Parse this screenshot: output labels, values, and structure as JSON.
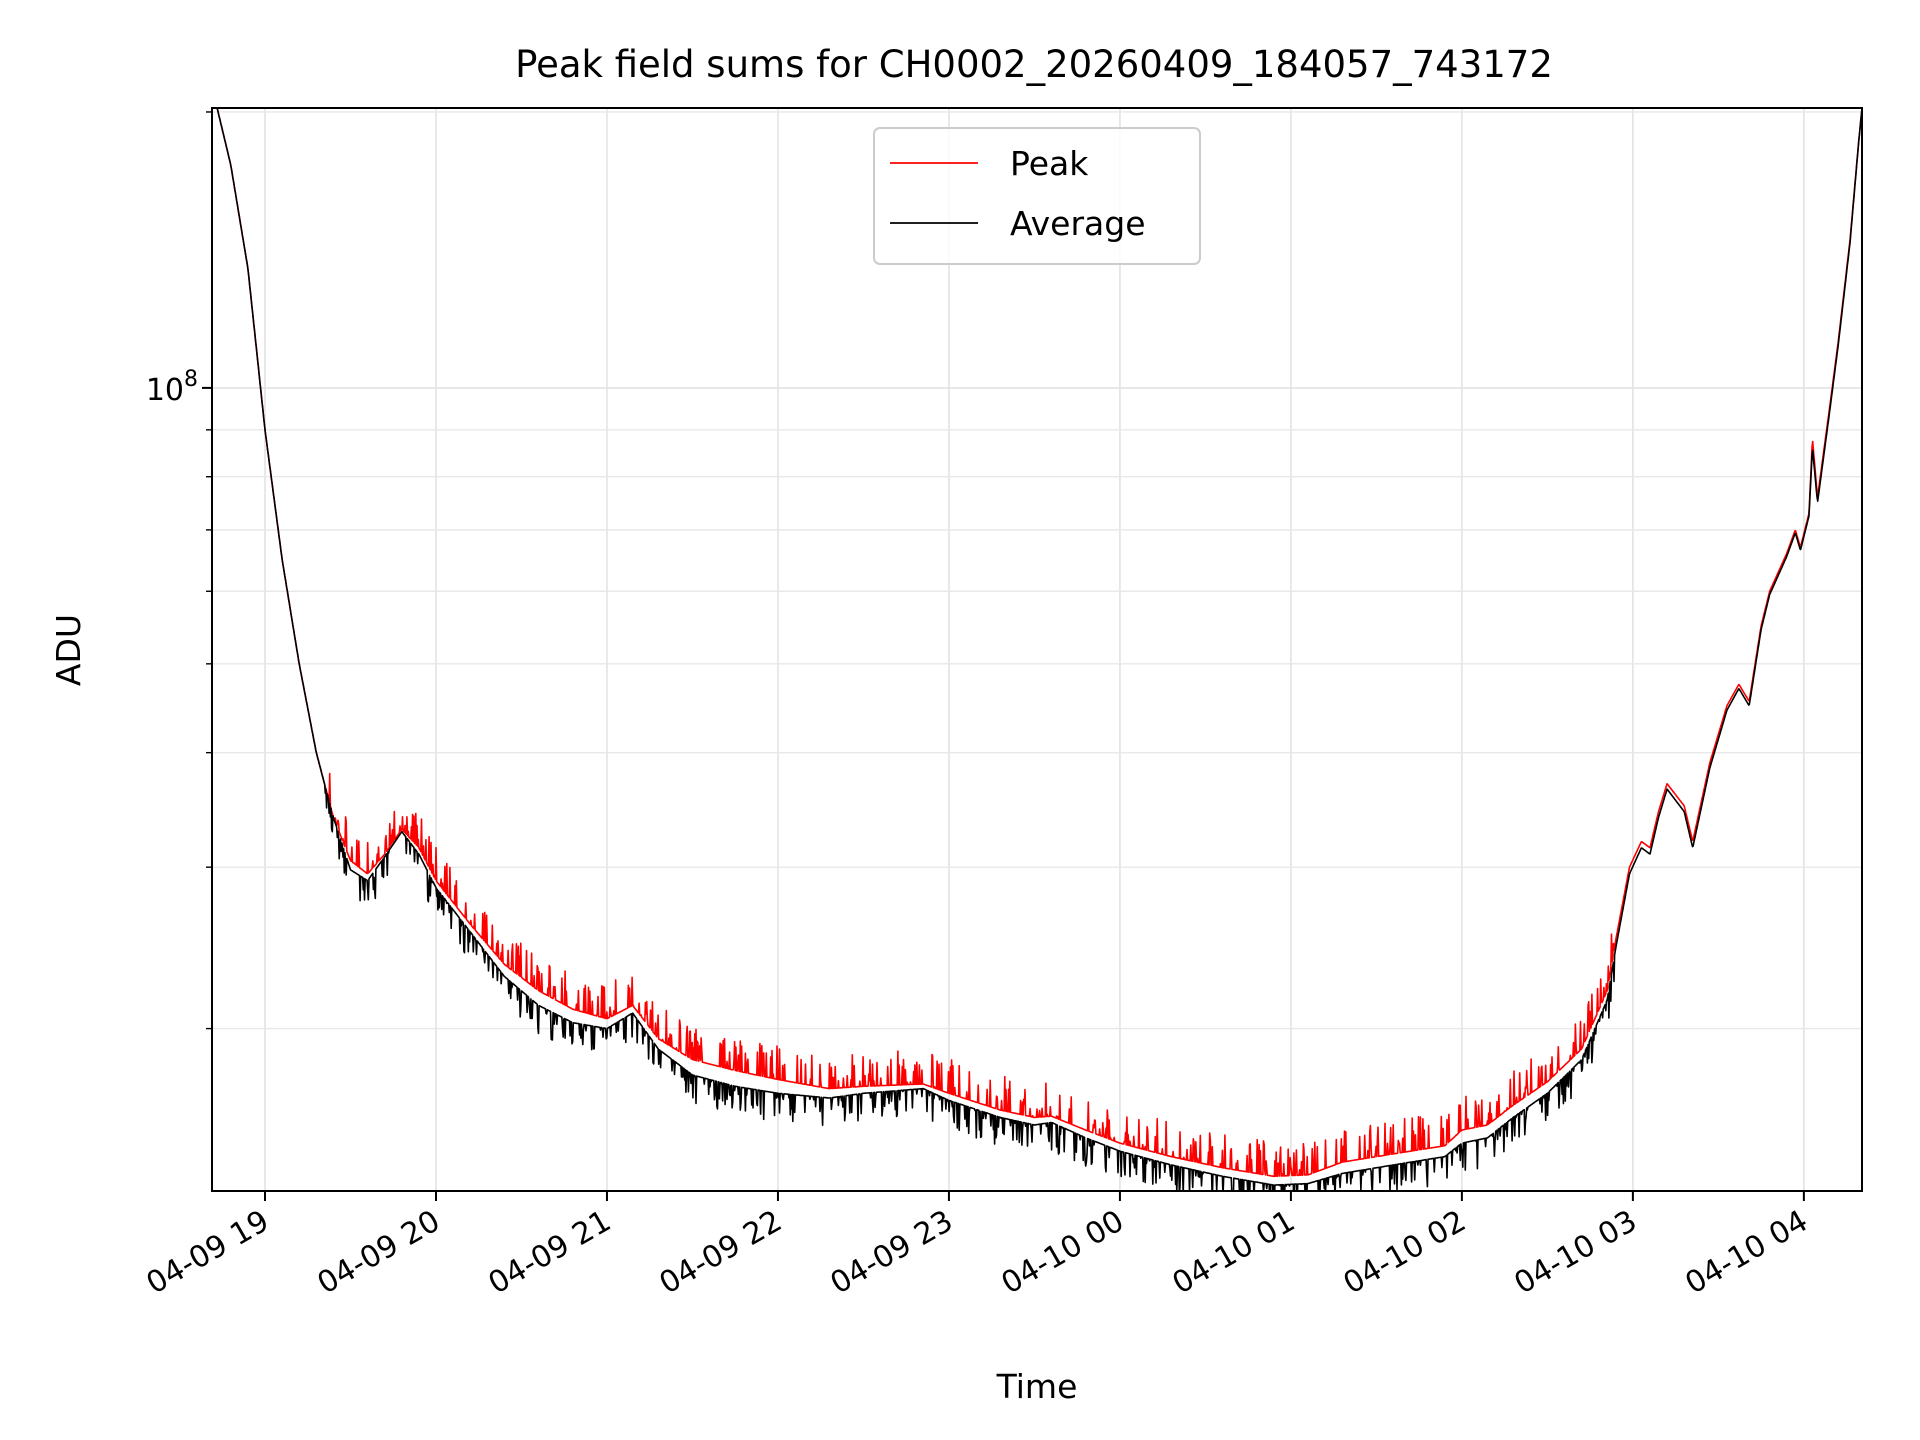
{
  "chart_data": {
    "type": "line",
    "title": "Peak field sums for CH0002_20260409_184057_743172",
    "xlabel": "Time",
    "ylabel": "ADU",
    "y_scale": "log",
    "grid": true,
    "legend_position": "upper-center",
    "x_unit": "hours since 2026-04-09 19:00",
    "xlim": [
      -0.31,
      9.34
    ],
    "ylim": [
      13300000.0,
      202000000.0
    ],
    "x_ticks": [
      0,
      1,
      2,
      3,
      4,
      5,
      6,
      7,
      8,
      9
    ],
    "x_tick_labels": [
      "04-09 19",
      "04-09 20",
      "04-09 21",
      "04-09 22",
      "04-09 23",
      "04-10 00",
      "04-10 01",
      "04-10 02",
      "04-10 03",
      "04-10 04"
    ],
    "y_major_ticks": [
      {
        "value": 100000000,
        "base": "10",
        "exp": "8"
      }
    ],
    "y_minor_ticks": [
      20000000,
      30000000,
      40000000,
      50000000,
      60000000,
      70000000,
      80000000,
      90000000,
      200000000
    ],
    "series": [
      {
        "name": "Peak",
        "color": "#ff0000",
        "spike_amp": 0.09,
        "points": [
          [
            -0.28,
            202000000.0
          ],
          [
            -0.2,
            175000000.0
          ],
          [
            -0.1,
            135000000.0
          ],
          [
            0,
            90000000.0
          ],
          [
            0.1,
            65000000.0
          ],
          [
            0.2,
            50000000.0
          ],
          [
            0.3,
            40000000.0
          ],
          [
            0.4,
            34000000.0
          ],
          [
            0.5,
            30500000.0
          ],
          [
            0.6,
            29500000.0
          ],
          [
            0.7,
            31000000.0
          ],
          [
            0.8,
            33000000.0
          ],
          [
            0.9,
            31500000.0
          ],
          [
            1.0,
            29000000.0
          ],
          [
            1.2,
            26000000.0
          ],
          [
            1.4,
            23500000.0
          ],
          [
            1.6,
            22000000.0
          ],
          [
            1.8,
            21000000.0
          ],
          [
            2.0,
            20500000.0
          ],
          [
            2.15,
            21200000.0
          ],
          [
            2.3,
            19500000.0
          ],
          [
            2.5,
            18500000.0
          ],
          [
            2.75,
            18000000.0
          ],
          [
            3.0,
            17600000.0
          ],
          [
            3.3,
            17200000.0
          ],
          [
            3.5,
            17300000.0
          ],
          [
            3.85,
            17400000.0
          ],
          [
            4.0,
            17000000.0
          ],
          [
            4.3,
            16300000.0
          ],
          [
            4.5,
            16000000.0
          ],
          [
            4.6,
            16050000.0
          ],
          [
            4.8,
            15500000.0
          ],
          [
            5.0,
            15000000.0
          ],
          [
            5.3,
            14500000.0
          ],
          [
            5.6,
            14100000.0
          ],
          [
            5.9,
            13800000.0
          ],
          [
            6.1,
            13850000.0
          ],
          [
            6.3,
            14300000.0
          ],
          [
            6.6,
            14600000.0
          ],
          [
            6.9,
            14900000.0
          ],
          [
            7.0,
            15500000.0
          ],
          [
            7.15,
            15700000.0
          ],
          [
            7.3,
            16500000.0
          ],
          [
            7.5,
            17500000.0
          ],
          [
            7.7,
            19000000.0
          ],
          [
            7.85,
            22000000.0
          ],
          [
            7.9,
            25000000.0
          ],
          [
            7.98,
            30000000.0
          ],
          [
            8.05,
            32000000.0
          ],
          [
            8.1,
            31500000.0
          ],
          [
            8.15,
            34500000.0
          ],
          [
            8.2,
            37000000.0
          ],
          [
            8.3,
            35000000.0
          ],
          [
            8.35,
            32000000.0
          ],
          [
            8.45,
            39000000.0
          ],
          [
            8.55,
            45000000.0
          ],
          [
            8.62,
            47500000.0
          ],
          [
            8.68,
            45500000.0
          ],
          [
            8.75,
            55000000.0
          ],
          [
            8.8,
            60000000.0
          ],
          [
            8.9,
            66000000.0
          ],
          [
            8.95,
            70000000.0
          ],
          [
            8.98,
            67000000.0
          ],
          [
            9.03,
            73000000.0
          ],
          [
            9.05,
            88000000.0
          ],
          [
            9.08,
            76000000.0
          ],
          [
            9.15,
            95000000.0
          ],
          [
            9.2,
            112000000.0
          ],
          [
            9.27,
            145000000.0
          ],
          [
            9.32,
            185000000.0
          ],
          [
            9.34,
            202000000.0
          ]
        ]
      },
      {
        "name": "Average",
        "color": "#000000",
        "spike_amp": 0.07,
        "points": [
          [
            -0.28,
            202000000.0
          ],
          [
            -0.2,
            175000000.0
          ],
          [
            -0.1,
            135000000.0
          ],
          [
            0,
            90000000.0
          ],
          [
            0.1,
            65000000.0
          ],
          [
            0.2,
            50000000.0
          ],
          [
            0.3,
            40000000.0
          ],
          [
            0.4,
            34000000.0
          ],
          [
            0.5,
            29800000.0
          ],
          [
            0.6,
            29000000.0
          ],
          [
            0.7,
            30800000.0
          ],
          [
            0.8,
            32800000.0
          ],
          [
            0.9,
            31000000.0
          ],
          [
            1.0,
            28500000.0
          ],
          [
            1.2,
            25500000.0
          ],
          [
            1.4,
            22800000.0
          ],
          [
            1.6,
            21200000.0
          ],
          [
            1.8,
            20300000.0
          ],
          [
            2.0,
            20000000.0
          ],
          [
            2.15,
            20800000.0
          ],
          [
            2.3,
            19000000.0
          ],
          [
            2.5,
            17800000.0
          ],
          [
            2.75,
            17300000.0
          ],
          [
            3.0,
            17000000.0
          ],
          [
            3.3,
            16800000.0
          ],
          [
            3.5,
            17000000.0
          ],
          [
            3.85,
            17200000.0
          ],
          [
            4.0,
            16700000.0
          ],
          [
            4.3,
            16000000.0
          ],
          [
            4.5,
            15700000.0
          ],
          [
            4.6,
            15800000.0
          ],
          [
            4.8,
            15200000.0
          ],
          [
            5.0,
            14700000.0
          ],
          [
            5.3,
            14200000.0
          ],
          [
            5.6,
            13800000.0
          ],
          [
            5.9,
            13500000.0
          ],
          [
            6.1,
            13550000.0
          ],
          [
            6.3,
            13900000.0
          ],
          [
            6.6,
            14200000.0
          ],
          [
            6.9,
            14500000.0
          ],
          [
            7.0,
            15000000.0
          ],
          [
            7.15,
            15200000.0
          ],
          [
            7.3,
            16000000.0
          ],
          [
            7.5,
            17000000.0
          ],
          [
            7.7,
            18500000.0
          ],
          [
            7.85,
            21500000.0
          ],
          [
            7.9,
            24500000.0
          ],
          [
            7.98,
            29500000.0
          ],
          [
            8.05,
            31500000.0
          ],
          [
            8.1,
            31000000.0
          ],
          [
            8.15,
            34000000.0
          ],
          [
            8.2,
            36500000.0
          ],
          [
            8.3,
            34500000.0
          ],
          [
            8.35,
            31500000.0
          ],
          [
            8.45,
            38500000.0
          ],
          [
            8.55,
            44500000.0
          ],
          [
            8.62,
            47000000.0
          ],
          [
            8.68,
            45000000.0
          ],
          [
            8.75,
            54500000.0
          ],
          [
            8.8,
            59500000.0
          ],
          [
            8.9,
            65500000.0
          ],
          [
            8.95,
            69500000.0
          ],
          [
            8.98,
            66500000.0
          ],
          [
            9.03,
            72500000.0
          ],
          [
            9.05,
            86000000.0
          ],
          [
            9.08,
            75000000.0
          ],
          [
            9.15,
            94000000.0
          ],
          [
            9.2,
            111000000.0
          ],
          [
            9.27,
            144000000.0
          ],
          [
            9.32,
            185000000.0
          ],
          [
            9.34,
            202000000.0
          ]
        ]
      }
    ]
  }
}
